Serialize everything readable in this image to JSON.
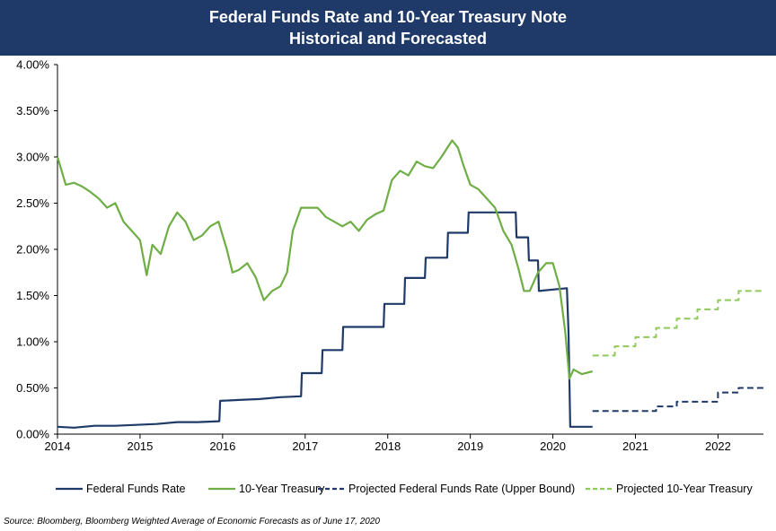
{
  "chart_data": {
    "type": "line",
    "title": "Federal Funds Rate and 10-Year Treasury Note",
    "subtitle": "Historical and Forecasted",
    "xlabel": "",
    "ylabel": "",
    "xlim": [
      2014,
      2022.55
    ],
    "ylim": [
      0,
      4
    ],
    "y_ticks": [
      0,
      0.5,
      1.0,
      1.5,
      2.0,
      2.5,
      3.0,
      3.5,
      4.0
    ],
    "y_tick_labels": [
      "0.00%",
      "0.50%",
      "1.00%",
      "1.50%",
      "2.00%",
      "2.50%",
      "3.00%",
      "3.50%",
      "4.00%"
    ],
    "x_ticks": [
      2014,
      2015,
      2016,
      2017,
      2018,
      2019,
      2020,
      2021,
      2022
    ],
    "x_tick_labels": [
      "2014",
      "2015",
      "2016",
      "2017",
      "2018",
      "2019",
      "2020",
      "2021",
      "2022"
    ],
    "grid": false,
    "legend_position": "bottom",
    "series": [
      {
        "name": "Federal Funds Rate",
        "style": "solid",
        "color": "#1f3a68",
        "points": [
          [
            2014.0,
            0.08
          ],
          [
            2014.2,
            0.07
          ],
          [
            2014.45,
            0.09
          ],
          [
            2014.7,
            0.09
          ],
          [
            2014.95,
            0.1
          ],
          [
            2015.2,
            0.11
          ],
          [
            2015.45,
            0.13
          ],
          [
            2015.7,
            0.13
          ],
          [
            2015.96,
            0.14
          ],
          [
            2015.97,
            0.36
          ],
          [
            2016.2,
            0.37
          ],
          [
            2016.45,
            0.38
          ],
          [
            2016.7,
            0.4
          ],
          [
            2016.95,
            0.41
          ],
          [
            2016.96,
            0.66
          ],
          [
            2017.2,
            0.66
          ],
          [
            2017.21,
            0.91
          ],
          [
            2017.45,
            0.91
          ],
          [
            2017.46,
            1.16
          ],
          [
            2017.95,
            1.16
          ],
          [
            2017.96,
            1.41
          ],
          [
            2018.2,
            1.41
          ],
          [
            2018.21,
            1.69
          ],
          [
            2018.45,
            1.69
          ],
          [
            2018.46,
            1.91
          ],
          [
            2018.72,
            1.91
          ],
          [
            2018.73,
            2.18
          ],
          [
            2018.97,
            2.18
          ],
          [
            2018.98,
            2.4
          ],
          [
            2019.4,
            2.4
          ],
          [
            2019.55,
            2.4
          ],
          [
            2019.56,
            2.13
          ],
          [
            2019.7,
            2.13
          ],
          [
            2019.71,
            1.88
          ],
          [
            2019.82,
            1.88
          ],
          [
            2019.83,
            1.55
          ],
          [
            2020.17,
            1.58
          ],
          [
            2020.19,
            1.1
          ],
          [
            2020.21,
            0.08
          ],
          [
            2020.48,
            0.08
          ]
        ]
      },
      {
        "name": "10-Year Treasury",
        "style": "solid",
        "color": "#6fae45",
        "points": [
          [
            2014.0,
            3.0
          ],
          [
            2014.1,
            2.7
          ],
          [
            2014.2,
            2.72
          ],
          [
            2014.3,
            2.68
          ],
          [
            2014.4,
            2.62
          ],
          [
            2014.5,
            2.55
          ],
          [
            2014.6,
            2.45
          ],
          [
            2014.7,
            2.5
          ],
          [
            2014.8,
            2.3
          ],
          [
            2014.9,
            2.2
          ],
          [
            2015.0,
            2.1
          ],
          [
            2015.08,
            1.72
          ],
          [
            2015.15,
            2.05
          ],
          [
            2015.25,
            1.95
          ],
          [
            2015.35,
            2.25
          ],
          [
            2015.45,
            2.4
          ],
          [
            2015.55,
            2.3
          ],
          [
            2015.65,
            2.1
          ],
          [
            2015.75,
            2.15
          ],
          [
            2015.85,
            2.25
          ],
          [
            2015.95,
            2.3
          ],
          [
            2016.05,
            2.0
          ],
          [
            2016.12,
            1.75
          ],
          [
            2016.2,
            1.78
          ],
          [
            2016.3,
            1.85
          ],
          [
            2016.4,
            1.7
          ],
          [
            2016.5,
            1.45
          ],
          [
            2016.6,
            1.55
          ],
          [
            2016.7,
            1.6
          ],
          [
            2016.78,
            1.75
          ],
          [
            2016.85,
            2.2
          ],
          [
            2016.95,
            2.45
          ],
          [
            2017.05,
            2.45
          ],
          [
            2017.15,
            2.45
          ],
          [
            2017.25,
            2.35
          ],
          [
            2017.35,
            2.3
          ],
          [
            2017.45,
            2.25
          ],
          [
            2017.55,
            2.3
          ],
          [
            2017.65,
            2.2
          ],
          [
            2017.75,
            2.32
          ],
          [
            2017.85,
            2.38
          ],
          [
            2017.95,
            2.42
          ],
          [
            2018.05,
            2.75
          ],
          [
            2018.15,
            2.85
          ],
          [
            2018.25,
            2.8
          ],
          [
            2018.35,
            2.95
          ],
          [
            2018.45,
            2.9
          ],
          [
            2018.55,
            2.88
          ],
          [
            2018.65,
            3.0
          ],
          [
            2018.78,
            3.18
          ],
          [
            2018.85,
            3.1
          ],
          [
            2018.92,
            2.9
          ],
          [
            2019.0,
            2.7
          ],
          [
            2019.1,
            2.65
          ],
          [
            2019.2,
            2.55
          ],
          [
            2019.3,
            2.45
          ],
          [
            2019.4,
            2.2
          ],
          [
            2019.5,
            2.05
          ],
          [
            2019.58,
            1.8
          ],
          [
            2019.65,
            1.55
          ],
          [
            2019.72,
            1.55
          ],
          [
            2019.82,
            1.75
          ],
          [
            2019.92,
            1.85
          ],
          [
            2020.0,
            1.85
          ],
          [
            2020.08,
            1.6
          ],
          [
            2020.15,
            1.1
          ],
          [
            2020.2,
            0.6
          ],
          [
            2020.25,
            0.7
          ],
          [
            2020.35,
            0.65
          ],
          [
            2020.48,
            0.68
          ]
        ]
      },
      {
        "name": "Projected Federal Funds Rate (Upper Bound)",
        "style": "dashed",
        "color": "#1f3a68",
        "points": [
          [
            2020.48,
            0.25
          ],
          [
            2021.25,
            0.25
          ],
          [
            2021.25,
            0.3
          ],
          [
            2021.5,
            0.3
          ],
          [
            2021.5,
            0.35
          ],
          [
            2022.0,
            0.35
          ],
          [
            2022.0,
            0.45
          ],
          [
            2022.25,
            0.45
          ],
          [
            2022.25,
            0.5
          ],
          [
            2022.55,
            0.5
          ]
        ]
      },
      {
        "name": "Projected 10-Year Treasury",
        "style": "dashed",
        "color": "#8fc95a",
        "points": [
          [
            2020.48,
            0.85
          ],
          [
            2020.75,
            0.85
          ],
          [
            2020.75,
            0.95
          ],
          [
            2021.0,
            0.95
          ],
          [
            2021.0,
            1.05
          ],
          [
            2021.25,
            1.05
          ],
          [
            2021.25,
            1.15
          ],
          [
            2021.5,
            1.15
          ],
          [
            2021.5,
            1.25
          ],
          [
            2021.75,
            1.25
          ],
          [
            2021.75,
            1.35
          ],
          [
            2022.0,
            1.35
          ],
          [
            2022.0,
            1.45
          ],
          [
            2022.25,
            1.45
          ],
          [
            2022.25,
            1.55
          ],
          [
            2022.55,
            1.55
          ]
        ]
      }
    ]
  },
  "source": "Source: Bloomberg, Bloomberg Weighted Average of Economic Forecasts as of June 17, 2020",
  "colors": {
    "banner": "#1f3a68",
    "fed_funds": "#1f3a68",
    "treasury": "#6fae45",
    "projected_treasury": "#8fc95a"
  }
}
